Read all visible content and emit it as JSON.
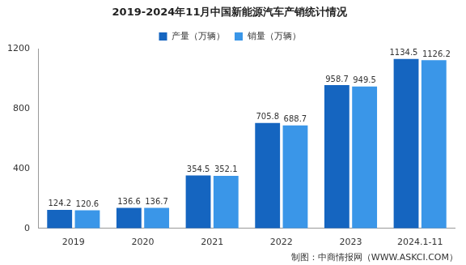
{
  "chart_data": {
    "type": "bar",
    "title": "2019-2024年11月中国新能源汽车产销统计情况",
    "categories": [
      "2019",
      "2020",
      "2021",
      "2022",
      "2023",
      "2024.1-11"
    ],
    "series": [
      {
        "name": "产量（万辆）",
        "color": "#1565c0",
        "values": [
          124.2,
          136.6,
          354.5,
          705.8,
          958.7,
          1134.5
        ]
      },
      {
        "name": "销量（万辆）",
        "color": "#3a96e8",
        "values": [
          120.6,
          136.7,
          352.1,
          688.7,
          949.5,
          1126.2
        ]
      }
    ],
    "ylim": [
      0,
      1200
    ],
    "yticks": [
      0,
      400,
      800,
      1200
    ],
    "grid": false,
    "legend": "top",
    "data_labels": true,
    "annotations": [
      "制图：中商情报网（WWW.ASKCI.COM）"
    ]
  }
}
